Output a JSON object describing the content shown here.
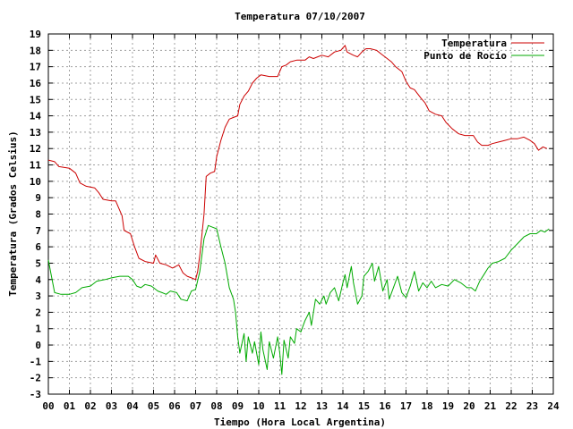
{
  "chart_data": {
    "type": "line",
    "title": "Temperatura 07/10/2007",
    "xlabel": "Tiempo (Hora Local Argentina)",
    "ylabel": "Temperatura (Grados Celsius)",
    "xlim": [
      0,
      24
    ],
    "ylim": [
      -3,
      19
    ],
    "grid": true,
    "legend_position": "top-right",
    "x_ticks": [
      "00",
      "01",
      "02",
      "03",
      "04",
      "05",
      "06",
      "07",
      "08",
      "09",
      "10",
      "11",
      "12",
      "13",
      "14",
      "15",
      "16",
      "17",
      "18",
      "19",
      "20",
      "21",
      "22",
      "23",
      "24"
    ],
    "y_ticks": [
      -3,
      -2,
      -1,
      0,
      1,
      2,
      3,
      4,
      5,
      6,
      7,
      8,
      9,
      10,
      11,
      12,
      13,
      14,
      15,
      16,
      17,
      18,
      19
    ],
    "series": [
      {
        "name": "Temperatura",
        "color": "#cc0000",
        "points": [
          [
            0,
            11.3
          ],
          [
            0.3,
            11.2
          ],
          [
            0.5,
            10.9
          ],
          [
            1.0,
            10.8
          ],
          [
            1.3,
            10.5
          ],
          [
            1.5,
            9.9
          ],
          [
            1.8,
            9.7
          ],
          [
            2.2,
            9.6
          ],
          [
            2.4,
            9.3
          ],
          [
            2.6,
            8.9
          ],
          [
            3.0,
            8.8
          ],
          [
            3.2,
            8.8
          ],
          [
            3.5,
            7.9
          ],
          [
            3.6,
            7.0
          ],
          [
            3.9,
            6.8
          ],
          [
            4.1,
            6.0
          ],
          [
            4.3,
            5.3
          ],
          [
            4.6,
            5.1
          ],
          [
            5.0,
            5.0
          ],
          [
            5.1,
            5.5
          ],
          [
            5.3,
            5.0
          ],
          [
            5.6,
            4.9
          ],
          [
            5.9,
            4.7
          ],
          [
            6.2,
            4.9
          ],
          [
            6.4,
            4.4
          ],
          [
            6.6,
            4.2
          ],
          [
            6.8,
            4.1
          ],
          [
            7.0,
            4.0
          ],
          [
            7.1,
            4.5
          ],
          [
            7.2,
            5.5
          ],
          [
            7.4,
            8.0
          ],
          [
            7.5,
            10.3
          ],
          [
            7.7,
            10.5
          ],
          [
            7.9,
            10.6
          ],
          [
            8.0,
            11.5
          ],
          [
            8.2,
            12.5
          ],
          [
            8.4,
            13.3
          ],
          [
            8.6,
            13.8
          ],
          [
            8.8,
            13.9
          ],
          [
            9.0,
            14.0
          ],
          [
            9.1,
            14.7
          ],
          [
            9.3,
            15.2
          ],
          [
            9.5,
            15.5
          ],
          [
            9.7,
            16.0
          ],
          [
            9.9,
            16.3
          ],
          [
            10.1,
            16.5
          ],
          [
            10.5,
            16.4
          ],
          [
            10.9,
            16.4
          ],
          [
            11.1,
            17.0
          ],
          [
            11.3,
            17.1
          ],
          [
            11.5,
            17.3
          ],
          [
            11.8,
            17.4
          ],
          [
            12.2,
            17.4
          ],
          [
            12.4,
            17.6
          ],
          [
            12.6,
            17.5
          ],
          [
            12.8,
            17.6
          ],
          [
            13.0,
            17.7
          ],
          [
            13.3,
            17.6
          ],
          [
            13.6,
            17.9
          ],
          [
            13.9,
            18.0
          ],
          [
            14.1,
            18.3
          ],
          [
            14.2,
            17.9
          ],
          [
            14.5,
            17.7
          ],
          [
            14.7,
            17.6
          ],
          [
            14.9,
            17.9
          ],
          [
            15.1,
            18.1
          ],
          [
            15.3,
            18.1
          ],
          [
            15.6,
            18.0
          ],
          [
            15.8,
            17.8
          ],
          [
            16.0,
            17.6
          ],
          [
            16.3,
            17.3
          ],
          [
            16.5,
            17.0
          ],
          [
            16.8,
            16.7
          ],
          [
            17.0,
            16.1
          ],
          [
            17.2,
            15.7
          ],
          [
            17.4,
            15.6
          ],
          [
            17.7,
            15.1
          ],
          [
            17.9,
            14.8
          ],
          [
            18.1,
            14.3
          ],
          [
            18.4,
            14.1
          ],
          [
            18.7,
            14.0
          ],
          [
            18.9,
            13.6
          ],
          [
            19.2,
            13.2
          ],
          [
            19.5,
            12.9
          ],
          [
            19.8,
            12.8
          ],
          [
            20.0,
            12.8
          ],
          [
            20.2,
            12.8
          ],
          [
            20.4,
            12.4
          ],
          [
            20.6,
            12.2
          ],
          [
            20.9,
            12.2
          ],
          [
            21.1,
            12.3
          ],
          [
            21.4,
            12.4
          ],
          [
            21.7,
            12.5
          ],
          [
            22.0,
            12.6
          ],
          [
            22.3,
            12.6
          ],
          [
            22.6,
            12.7
          ],
          [
            22.9,
            12.5
          ],
          [
            23.1,
            12.3
          ],
          [
            23.3,
            11.9
          ],
          [
            23.5,
            12.1
          ],
          [
            23.7,
            12.0
          ]
        ]
      },
      {
        "name": "Punto de Rocío",
        "color": "#00aa00",
        "points": [
          [
            0,
            5.2
          ],
          [
            0.1,
            4.5
          ],
          [
            0.3,
            3.2
          ],
          [
            0.6,
            3.1
          ],
          [
            1.0,
            3.1
          ],
          [
            1.3,
            3.2
          ],
          [
            1.6,
            3.5
          ],
          [
            2.0,
            3.6
          ],
          [
            2.3,
            3.9
          ],
          [
            2.7,
            4.0
          ],
          [
            3.0,
            4.1
          ],
          [
            3.4,
            4.2
          ],
          [
            3.8,
            4.2
          ],
          [
            4.0,
            4.0
          ],
          [
            4.2,
            3.6
          ],
          [
            4.4,
            3.5
          ],
          [
            4.6,
            3.7
          ],
          [
            4.9,
            3.6
          ],
          [
            5.2,
            3.3
          ],
          [
            5.4,
            3.2
          ],
          [
            5.6,
            3.1
          ],
          [
            5.8,
            3.3
          ],
          [
            6.1,
            3.2
          ],
          [
            6.3,
            2.8
          ],
          [
            6.6,
            2.7
          ],
          [
            6.8,
            3.3
          ],
          [
            7.0,
            3.4
          ],
          [
            7.2,
            4.5
          ],
          [
            7.4,
            6.5
          ],
          [
            7.6,
            7.3
          ],
          [
            7.8,
            7.2
          ],
          [
            8.0,
            7.1
          ],
          [
            8.2,
            6.0
          ],
          [
            8.4,
            5.0
          ],
          [
            8.6,
            3.5
          ],
          [
            8.8,
            2.8
          ],
          [
            8.9,
            2.0
          ],
          [
            9.0,
            0.5
          ],
          [
            9.1,
            -0.5
          ],
          [
            9.3,
            0.7
          ],
          [
            9.4,
            -1.0
          ],
          [
            9.5,
            0.5
          ],
          [
            9.7,
            -0.5
          ],
          [
            9.8,
            0.2
          ],
          [
            10.0,
            -1.2
          ],
          [
            10.1,
            0.8
          ],
          [
            10.2,
            -0.3
          ],
          [
            10.4,
            -1.5
          ],
          [
            10.5,
            0.2
          ],
          [
            10.7,
            -0.8
          ],
          [
            10.9,
            0.5
          ],
          [
            11.0,
            -0.5
          ],
          [
            11.1,
            -1.8
          ],
          [
            11.2,
            0.3
          ],
          [
            11.4,
            -0.8
          ],
          [
            11.5,
            0.5
          ],
          [
            11.7,
            0.1
          ],
          [
            11.8,
            1.0
          ],
          [
            12.0,
            0.8
          ],
          [
            12.2,
            1.5
          ],
          [
            12.4,
            2.0
          ],
          [
            12.5,
            1.2
          ],
          [
            12.7,
            2.8
          ],
          [
            12.9,
            2.5
          ],
          [
            13.1,
            3.0
          ],
          [
            13.2,
            2.5
          ],
          [
            13.4,
            3.2
          ],
          [
            13.6,
            3.5
          ],
          [
            13.8,
            2.7
          ],
          [
            14.0,
            3.8
          ],
          [
            14.1,
            4.3
          ],
          [
            14.2,
            3.5
          ],
          [
            14.4,
            4.8
          ],
          [
            14.5,
            3.8
          ],
          [
            14.7,
            2.5
          ],
          [
            14.9,
            3.0
          ],
          [
            15.0,
            4.2
          ],
          [
            15.2,
            4.5
          ],
          [
            15.4,
            5.0
          ],
          [
            15.5,
            3.9
          ],
          [
            15.7,
            4.8
          ],
          [
            15.9,
            3.3
          ],
          [
            16.1,
            4.0
          ],
          [
            16.2,
            2.8
          ],
          [
            16.4,
            3.5
          ],
          [
            16.6,
            4.2
          ],
          [
            16.8,
            3.2
          ],
          [
            17.0,
            2.9
          ],
          [
            17.2,
            3.6
          ],
          [
            17.4,
            4.5
          ],
          [
            17.6,
            3.3
          ],
          [
            17.8,
            3.8
          ],
          [
            18.0,
            3.5
          ],
          [
            18.2,
            3.9
          ],
          [
            18.4,
            3.5
          ],
          [
            18.7,
            3.7
          ],
          [
            19.0,
            3.6
          ],
          [
            19.3,
            4.0
          ],
          [
            19.6,
            3.8
          ],
          [
            19.9,
            3.5
          ],
          [
            20.1,
            3.5
          ],
          [
            20.3,
            3.3
          ],
          [
            20.5,
            3.9
          ],
          [
            20.7,
            4.3
          ],
          [
            20.9,
            4.7
          ],
          [
            21.1,
            5.0
          ],
          [
            21.4,
            5.1
          ],
          [
            21.7,
            5.3
          ],
          [
            22.0,
            5.8
          ],
          [
            22.3,
            6.2
          ],
          [
            22.6,
            6.6
          ],
          [
            22.9,
            6.8
          ],
          [
            23.2,
            6.8
          ],
          [
            23.4,
            7.0
          ],
          [
            23.6,
            6.9
          ],
          [
            23.8,
            7.1
          ]
        ]
      }
    ]
  }
}
